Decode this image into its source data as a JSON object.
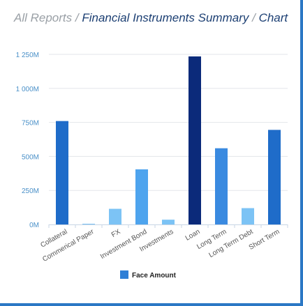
{
  "breadcrumb": {
    "root": "All Reports",
    "separator": "/",
    "page": "Financial Instruments Summary",
    "current": "Chart"
  },
  "chart_data": {
    "type": "bar",
    "categories": [
      "Collateral",
      "Commerical Paper",
      "FX",
      "Investment Bond",
      "Investments",
      "Loan",
      "Long Term",
      "Long Term Debt",
      "Short Term"
    ],
    "series": [
      {
        "name": "Face Amount",
        "values": [
          760,
          5,
          115,
          405,
          35,
          1235,
          560,
          120,
          695
        ],
        "colors": [
          "#1f6cc9",
          "#7cc3f5",
          "#7cc3f5",
          "#4ea4ee",
          "#7cc3f5",
          "#0b2a7a",
          "#3a8ae0",
          "#7cc3f5",
          "#1f6cc9"
        ]
      }
    ],
    "yticks": [
      "0M",
      "250M",
      "500M",
      "750M",
      "1 000M",
      "1 250M"
    ],
    "ylim": [
      0,
      1250
    ],
    "grid": true,
    "legend_position": "bottom-center",
    "legend_color": "#2f7fd6"
  }
}
